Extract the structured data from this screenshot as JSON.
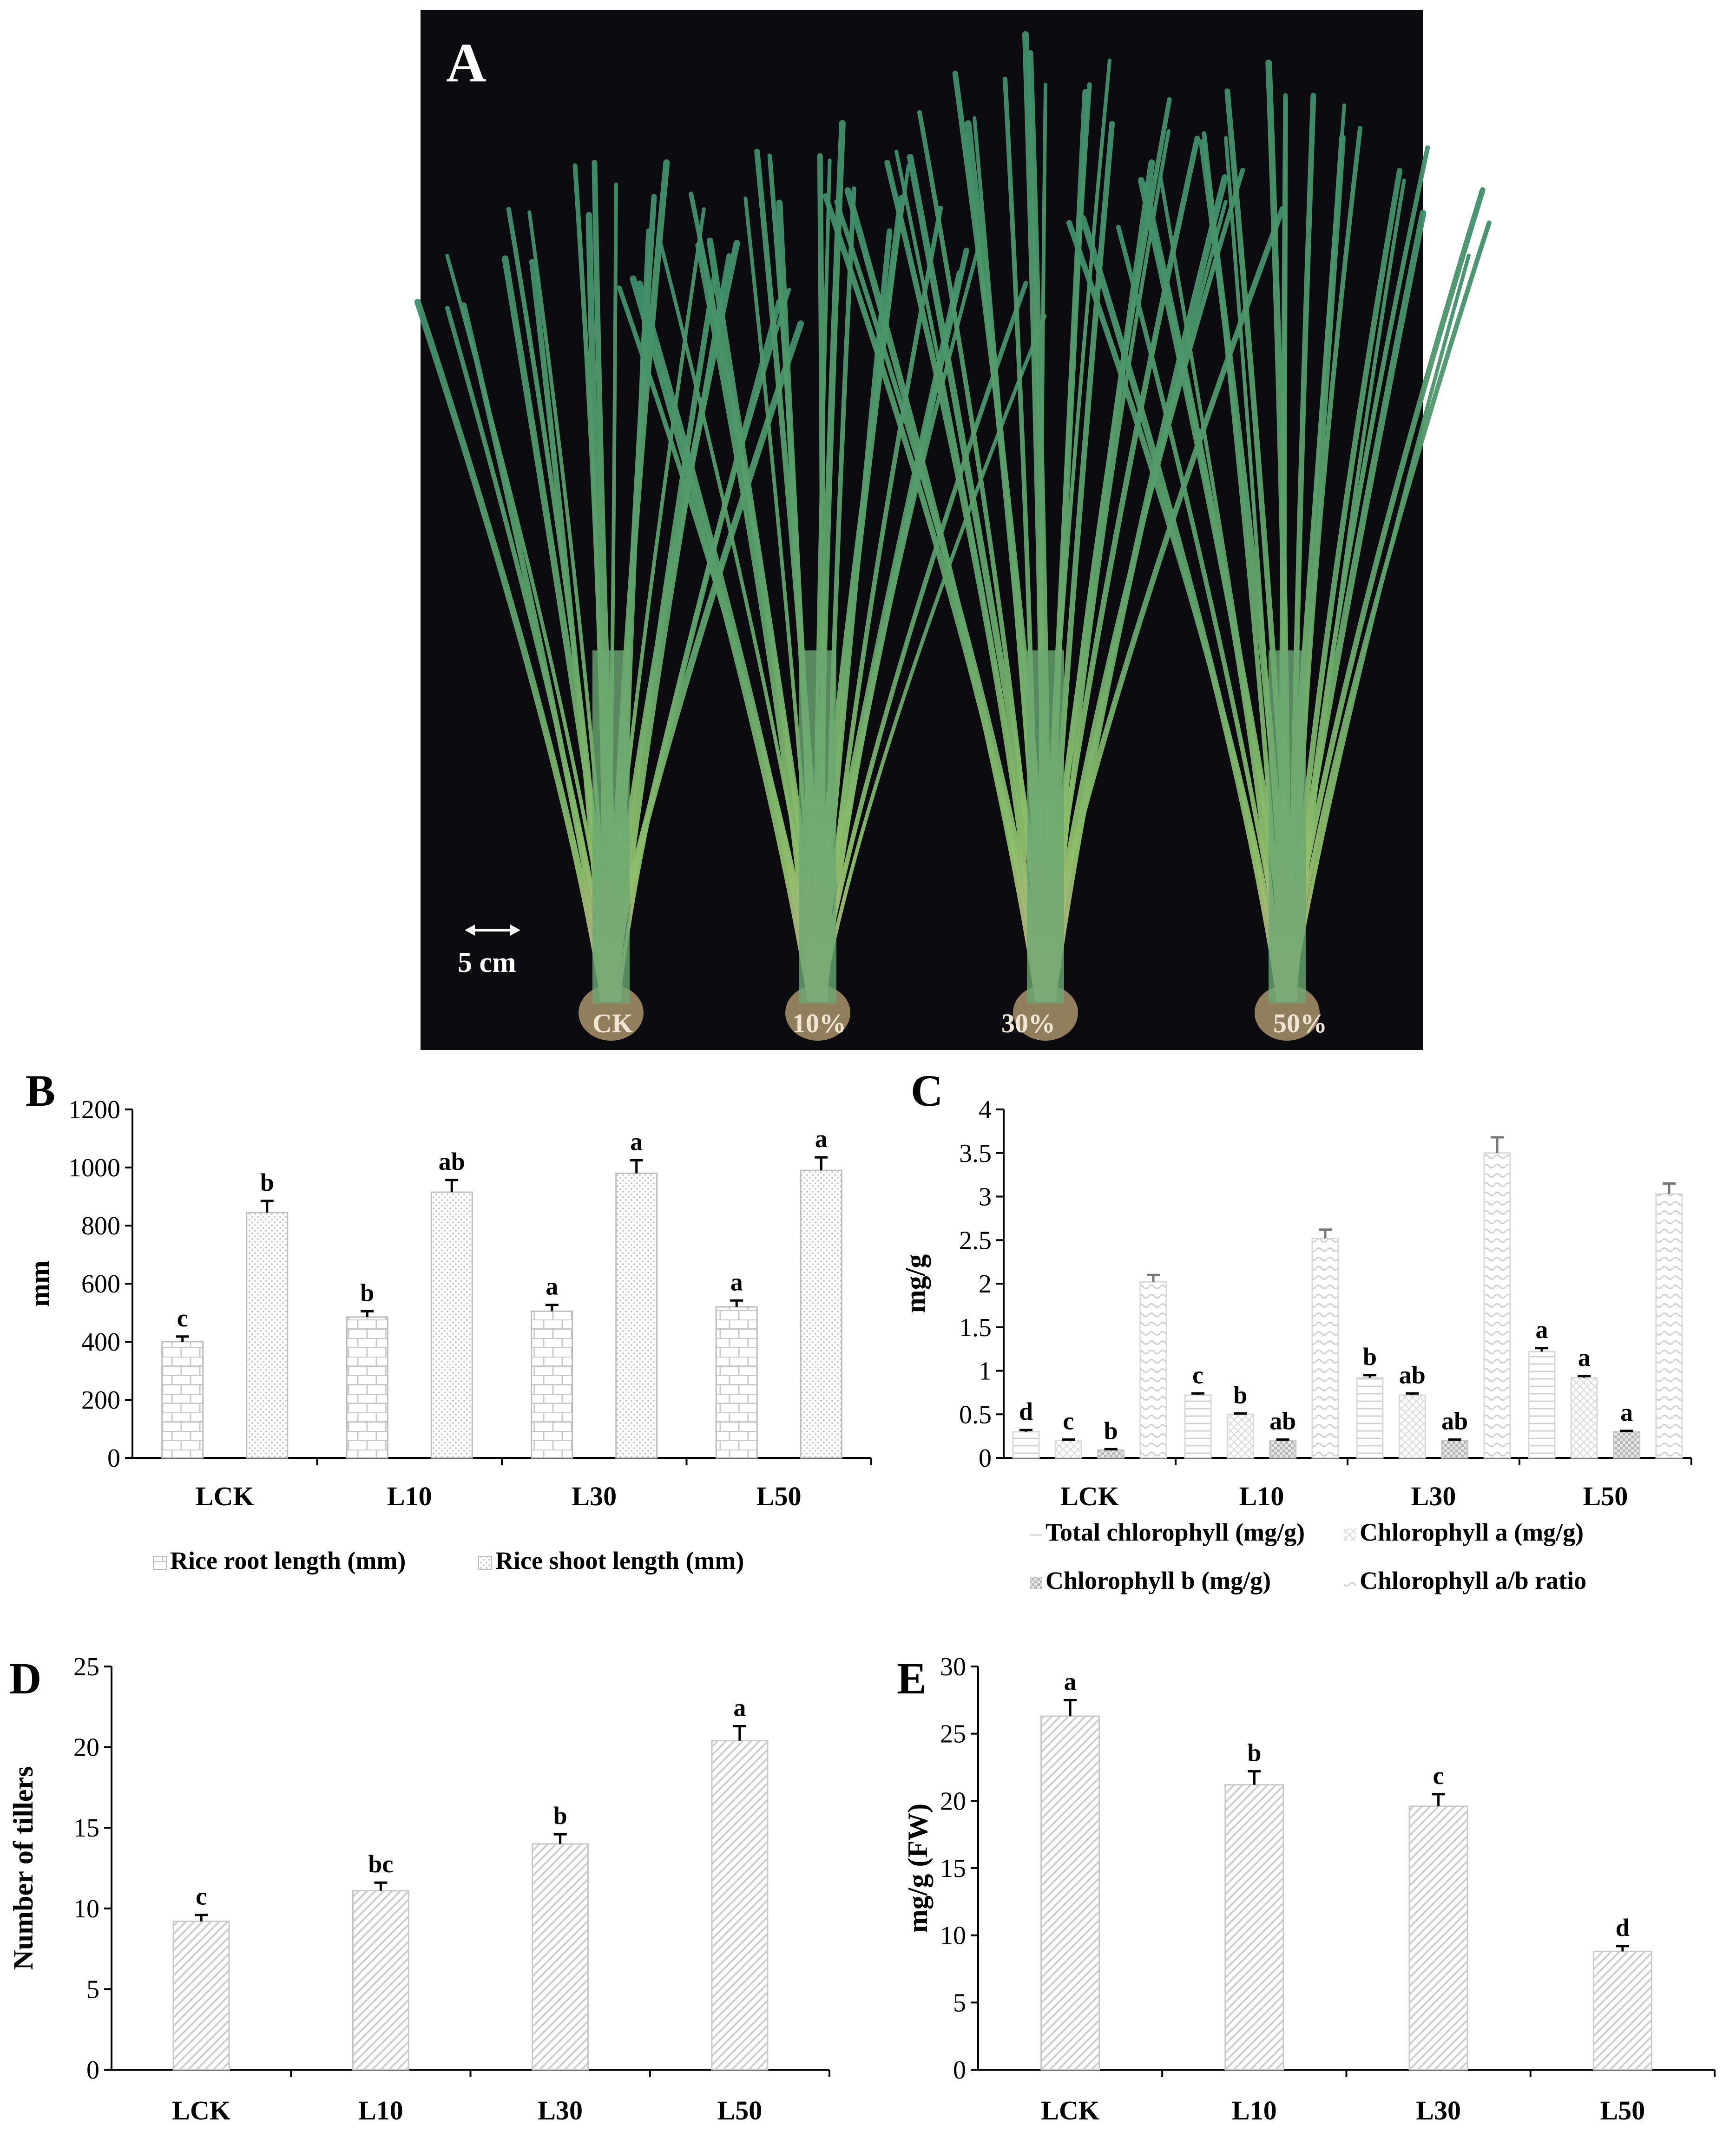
{
  "panels": {
    "A": {
      "letter": "A",
      "scale_label": "5 cm",
      "plant_labels": [
        "CK",
        "10%",
        "30%",
        "50%"
      ]
    },
    "B": {
      "letter": "B"
    },
    "C": {
      "letter": "C"
    },
    "D": {
      "letter": "D"
    },
    "E": {
      "letter": "E"
    }
  },
  "chart_data": [
    {
      "id": "B",
      "type": "bar",
      "categories": [
        "LCK",
        "L10",
        "L30",
        "L50"
      ],
      "ylabel": "mm",
      "ylim": [
        0,
        1200
      ],
      "yticks": [
        0,
        200,
        400,
        600,
        800,
        1000,
        1200
      ],
      "grid": false,
      "legend_position": "bottom",
      "series": [
        {
          "name": "Rice root length (mm)",
          "values": [
            400,
            485,
            505,
            520
          ],
          "errors": [
            18,
            20,
            22,
            22
          ],
          "letters": [
            "c",
            "b",
            "a",
            "a"
          ]
        },
        {
          "name": "Rice shoot length (mm)",
          "values": [
            845,
            915,
            980,
            990
          ],
          "errors": [
            40,
            42,
            45,
            45
          ],
          "letters": [
            "b",
            "ab",
            "a",
            "a"
          ]
        }
      ]
    },
    {
      "id": "C",
      "type": "bar",
      "categories": [
        "LCK",
        "L10",
        "L30",
        "L50"
      ],
      "ylabel": "mg/g",
      "ylim": [
        0,
        4
      ],
      "yticks": [
        0,
        0.5,
        1,
        1.5,
        2,
        2.5,
        3,
        3.5,
        4
      ],
      "grid": false,
      "legend_position": "bottom",
      "series": [
        {
          "name": "Total chlorophyll (mg/g)",
          "values": [
            0.3,
            0.72,
            0.92,
            1.22
          ],
          "errors": [
            0.02,
            0.02,
            0.03,
            0.04
          ],
          "letters": [
            "d",
            "c",
            "b",
            "a"
          ]
        },
        {
          "name": "Chlorophyll a (mg/g)",
          "values": [
            0.2,
            0.5,
            0.72,
            0.92
          ],
          "errors": [
            0.01,
            0.01,
            0.02,
            0.02
          ],
          "letters": [
            "c",
            "b",
            "ab",
            "a"
          ]
        },
        {
          "name": "Chlorophyll b (mg/g)",
          "values": [
            0.09,
            0.2,
            0.2,
            0.3
          ],
          "errors": [
            0.01,
            0.01,
            0.01,
            0.01
          ],
          "letters": [
            "b",
            "ab",
            "ab",
            "a"
          ]
        },
        {
          "name": "Chlorophyll a/b ratio",
          "values": [
            2.02,
            2.52,
            3.5,
            3.03
          ],
          "errors": [
            0.08,
            0.1,
            0.18,
            0.12
          ],
          "letters": [
            "",
            "",
            "",
            ""
          ]
        }
      ]
    },
    {
      "id": "D",
      "type": "bar",
      "categories": [
        "LCK",
        "L10",
        "L30",
        "L50"
      ],
      "ylabel": "Number of tillers",
      "ylim": [
        0,
        25
      ],
      "yticks": [
        0,
        5,
        10,
        15,
        20,
        25
      ],
      "grid": false,
      "series": [
        {
          "values": [
            9.2,
            11.1,
            14.0,
            20.4
          ],
          "errors": [
            0.4,
            0.5,
            0.6,
            0.9
          ],
          "letters": [
            "c",
            "bc",
            "b",
            "a"
          ]
        }
      ]
    },
    {
      "id": "E",
      "type": "bar",
      "categories": [
        "LCK",
        "L10",
        "L30",
        "L50"
      ],
      "ylabel": "mg/g (FW)",
      "ylim": [
        0,
        30
      ],
      "yticks": [
        0,
        5,
        10,
        15,
        20,
        25,
        30
      ],
      "grid": false,
      "series": [
        {
          "values": [
            26.3,
            21.2,
            19.6,
            8.8
          ],
          "errors": [
            1.2,
            1.0,
            0.9,
            0.4
          ],
          "letters": [
            "a",
            "b",
            "c",
            "d"
          ]
        }
      ]
    }
  ]
}
